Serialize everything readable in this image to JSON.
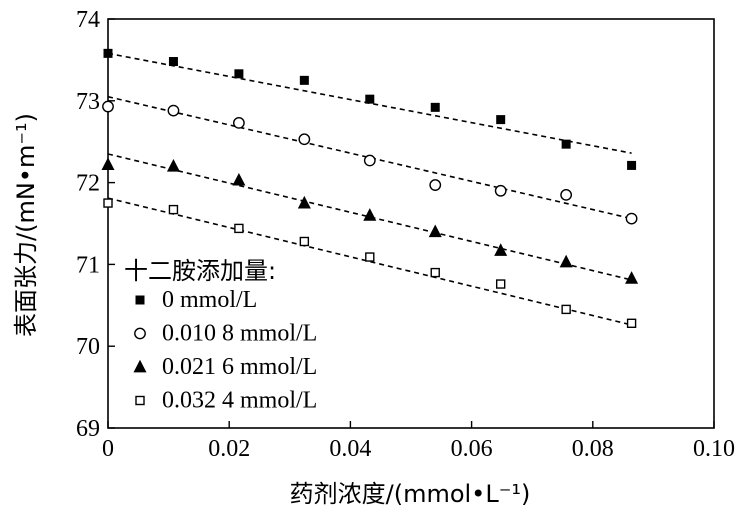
{
  "chart_data": {
    "type": "scatter",
    "xlabel": "药剂浓度/(mmol•L⁻¹)",
    "ylabel": "表面张力/(mN•m⁻¹)",
    "xlim": [
      0,
      0.1
    ],
    "ylim": [
      69,
      74
    ],
    "x_ticks": [
      "0",
      "0.02",
      "0.04",
      "0.06",
      "0.08",
      "0.10"
    ],
    "y_ticks": [
      "69",
      "70",
      "71",
      "72",
      "73",
      "74"
    ],
    "x_tick_values": [
      0,
      0.02,
      0.04,
      0.06,
      0.08,
      0.1
    ],
    "y_tick_values": [
      69,
      70,
      71,
      72,
      73,
      74
    ],
    "legend_title": "十二胺添加量:",
    "legend_position": "bottom-left",
    "grid": false,
    "x": [
      0,
      0.0108,
      0.0216,
      0.0324,
      0.0432,
      0.054,
      0.0648,
      0.0756,
      0.0864
    ],
    "series": [
      {
        "name": "0 mmol/L",
        "marker": "filled-square",
        "values": [
          73.58,
          73.48,
          73.33,
          73.25,
          73.02,
          72.92,
          72.77,
          72.47,
          72.21
        ],
        "fit": [
          73.58,
          72.36
        ]
      },
      {
        "name": "0.010 8 mmol/L",
        "marker": "open-circle",
        "values": [
          72.93,
          72.88,
          72.73,
          72.53,
          72.27,
          71.97,
          71.9,
          71.85,
          71.56
        ],
        "fit": [
          73.05,
          71.56
        ]
      },
      {
        "name": "0.021 6 mmol/L",
        "marker": "filled-triangle",
        "values": [
          72.22,
          72.2,
          72.03,
          71.75,
          71.6,
          71.4,
          71.17,
          71.03,
          70.83
        ],
        "fit": [
          72.35,
          70.81
        ]
      },
      {
        "name": "0.032 4 mmol/L",
        "marker": "open-square",
        "values": [
          71.75,
          71.67,
          71.44,
          71.28,
          71.09,
          70.9,
          70.76,
          70.45,
          70.28
        ],
        "fit": [
          71.81,
          70.26
        ]
      }
    ]
  }
}
